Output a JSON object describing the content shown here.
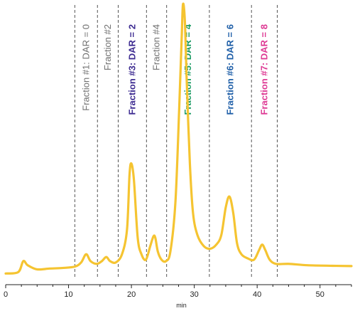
{
  "chart_data": {
    "type": "line",
    "title": "",
    "xlabel": "min",
    "ylabel": "",
    "xlim": [
      0,
      55
    ],
    "ylim": [
      0,
      100
    ],
    "x_ticks": [
      0,
      10,
      20,
      30,
      40,
      50
    ],
    "grid": false,
    "series": [
      {
        "color": "#f5c431",
        "x": [
          0,
          2,
          2.8,
          3.5,
          5,
          7,
          9,
          11,
          12,
          12.8,
          13.5,
          14.5,
          15.3,
          16,
          16.6,
          17.5,
          18.5,
          19.3,
          19.7,
          20,
          20.4,
          21,
          21.6,
          22.3,
          23,
          23.5,
          23.8,
          24.2,
          24.8,
          25.5,
          26.2,
          27,
          27.6,
          28,
          28.2,
          28.5,
          28.8,
          29.3,
          29.8,
          30.5,
          31.5,
          32.5,
          33.5,
          34.3,
          35,
          35.6,
          36.2,
          36.8,
          37.5,
          38.5,
          39.5,
          40.3,
          40.8,
          41.3,
          42,
          43,
          45,
          48,
          52,
          55
        ],
        "y": [
          2,
          2.5,
          6.5,
          5,
          3.5,
          3.8,
          4,
          4.5,
          6,
          9,
          6.5,
          5.5,
          6.5,
          8,
          6.5,
          6,
          9,
          18,
          38,
          42,
          36,
          15,
          9,
          7,
          12,
          15.5,
          15,
          10,
          7,
          6.5,
          10,
          28,
          62,
          88,
          100,
          94,
          72,
          42,
          24,
          16,
          12,
          11,
          12.5,
          16,
          26,
          30,
          24,
          13,
          9,
          7.5,
          7,
          10.5,
          12.5,
          10.5,
          7,
          5.5,
          5.5,
          5,
          4.8,
          4.7
        ]
      }
    ],
    "fractions": [
      {
        "label": "Fraction #1: DAR = 0",
        "x": 11.0,
        "color": "#707070",
        "bold": false
      },
      {
        "label": "Fraction #2",
        "x": 14.6,
        "color": "#707070",
        "bold": false
      },
      {
        "label": "Fraction #3: DAR = 2",
        "x": 17.9,
        "color": "#3d2b91",
        "bold": true
      },
      {
        "label": "Fraction #4",
        "x": 22.4,
        "color": "#707070",
        "bold": false
      },
      {
        "label": "Fraction #5: DAR = 4",
        "x": 25.6,
        "color": "#1a9a63",
        "bold": true
      },
      {
        "label": "Fraction #6: DAR = 6",
        "x": 32.4,
        "color": "#1f5fa8",
        "bold": true
      },
      {
        "label": "Fraction #7: DAR = 8",
        "x": 39.1,
        "color": "#de3a94",
        "bold": true
      }
    ],
    "last_divider_x": 43.2
  }
}
